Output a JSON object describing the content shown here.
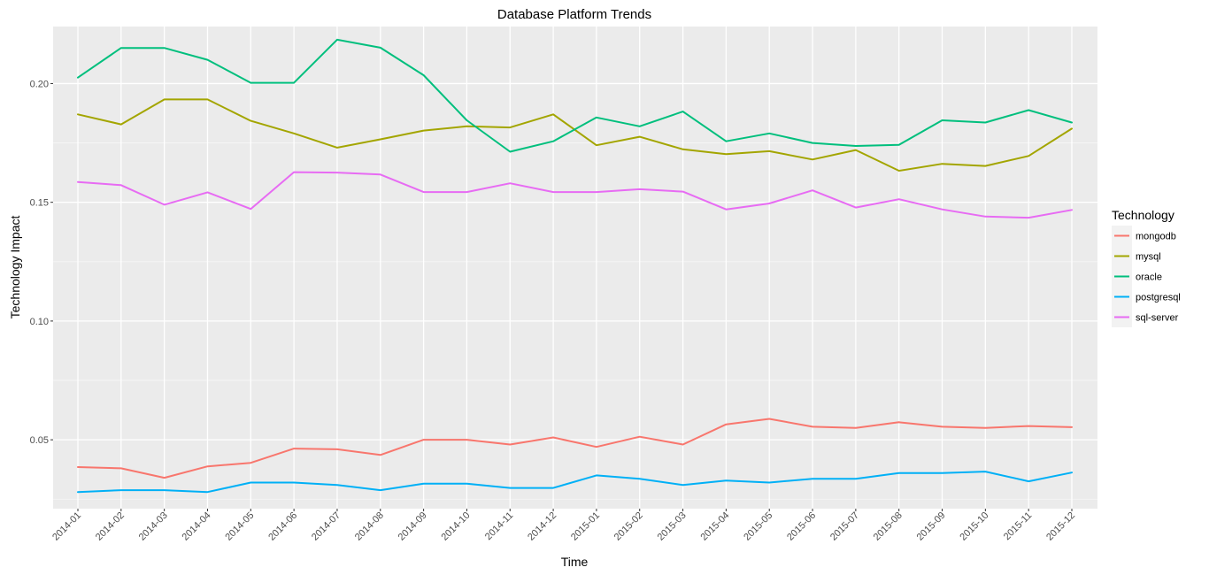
{
  "chart_data": {
    "type": "line",
    "title": "Database Platform Trends",
    "xlabel": "Time",
    "ylabel": "Technology Impact",
    "categories": [
      "2014-01",
      "2014-02",
      "2014-03",
      "2014-04",
      "2014-05",
      "2014-06",
      "2014-07",
      "2014-08",
      "2014-09",
      "2014-10",
      "2014-11",
      "2014-12",
      "2015-01",
      "2015-02",
      "2015-03",
      "2015-04",
      "2015-05",
      "2015-06",
      "2015-07",
      "2015-08",
      "2015-09",
      "2015-10",
      "2015-11",
      "2015-12"
    ],
    "ylim": [
      0.021,
      0.224
    ],
    "yticks": [
      0.05,
      0.1,
      0.15,
      0.2
    ],
    "ytick_labels": [
      "0.05",
      "0.10",
      "0.15",
      "0.20"
    ],
    "grid": true,
    "legend": {
      "title": "Technology",
      "position": "right"
    },
    "series": [
      {
        "name": "mongodb",
        "color": "#F8766D",
        "values": [
          0.0385,
          0.038,
          0.034,
          0.0388,
          0.0403,
          0.0463,
          0.046,
          0.0436,
          0.05,
          0.05,
          0.048,
          0.051,
          0.047,
          0.0513,
          0.048,
          0.0565,
          0.0588,
          0.0555,
          0.055,
          0.0574,
          0.0555,
          0.055,
          0.0558,
          0.0553
        ]
      },
      {
        "name": "mysql",
        "color": "#A3A500",
        "values": [
          0.187,
          0.1828,
          0.1933,
          0.1933,
          0.1843,
          0.179,
          0.173,
          0.1765,
          0.1802,
          0.182,
          0.1815,
          0.187,
          0.174,
          0.1776,
          0.1723,
          0.1703,
          0.1715,
          0.168,
          0.172,
          0.1633,
          0.1662,
          0.1653,
          0.1695,
          0.181
        ]
      },
      {
        "name": "oracle",
        "color": "#00BF7D",
        "values": [
          0.2025,
          0.215,
          0.215,
          0.21,
          0.2003,
          0.2003,
          0.2185,
          0.2151,
          0.2035,
          0.1845,
          0.1713,
          0.1757,
          0.1857,
          0.182,
          0.1882,
          0.1757,
          0.179,
          0.175,
          0.1737,
          0.1742,
          0.1845,
          0.1836,
          0.1888,
          0.1836
        ]
      },
      {
        "name": "postgresql",
        "color": "#00B0F6",
        "values": [
          0.028,
          0.0288,
          0.0288,
          0.028,
          0.032,
          0.032,
          0.031,
          0.0288,
          0.0315,
          0.0315,
          0.0297,
          0.0297,
          0.035,
          0.0336,
          0.031,
          0.0328,
          0.032,
          0.0336,
          0.0336,
          0.036,
          0.036,
          0.0366,
          0.0325,
          0.0362
        ]
      },
      {
        "name": "sql-server",
        "color": "#E76BF3",
        "values": [
          0.1585,
          0.1572,
          0.149,
          0.1542,
          0.1472,
          0.1627,
          0.1625,
          0.1617,
          0.1543,
          0.1543,
          0.158,
          0.1543,
          0.1543,
          0.1555,
          0.1545,
          0.147,
          0.1495,
          0.155,
          0.1478,
          0.1513,
          0.147,
          0.144,
          0.1435,
          0.1468
        ]
      }
    ]
  }
}
